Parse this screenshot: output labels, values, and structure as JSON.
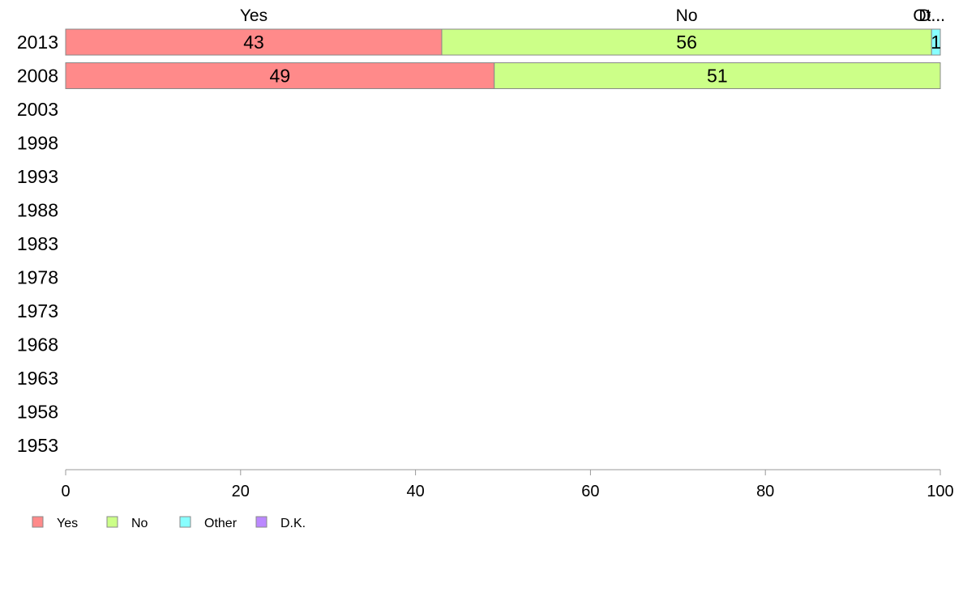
{
  "chart_data": {
    "type": "bar",
    "orientation": "horizontal",
    "stacked": true,
    "categories": [
      "2013",
      "2008",
      "2003",
      "1998",
      "1993",
      "1988",
      "1983",
      "1978",
      "1973",
      "1968",
      "1963",
      "1958",
      "1953"
    ],
    "series": [
      {
        "name": "Yes",
        "color": "#ff8a8a",
        "values": [
          43,
          49,
          null,
          null,
          null,
          null,
          null,
          null,
          null,
          null,
          null,
          null,
          null
        ]
      },
      {
        "name": "No",
        "color": "#ccff88",
        "values": [
          56,
          51,
          null,
          null,
          null,
          null,
          null,
          null,
          null,
          null,
          null,
          null,
          null
        ]
      },
      {
        "name": "Other",
        "color": "#88ffff",
        "values": [
          1,
          0,
          null,
          null,
          null,
          null,
          null,
          null,
          null,
          null,
          null,
          null,
          null
        ]
      },
      {
        "name": "D.K.",
        "color": "#bb88ff",
        "values": [
          0,
          0,
          null,
          null,
          null,
          null,
          null,
          null,
          null,
          null,
          null,
          null,
          null
        ]
      }
    ],
    "top_labels": [
      "Yes",
      "No",
      "Ot...",
      "D..."
    ],
    "xlim": [
      0,
      100
    ],
    "xticks": [
      0,
      20,
      40,
      60,
      80,
      100
    ],
    "xlabel": "",
    "ylabel": "",
    "title": "",
    "grid": false,
    "legend_position": "bottom-left"
  }
}
